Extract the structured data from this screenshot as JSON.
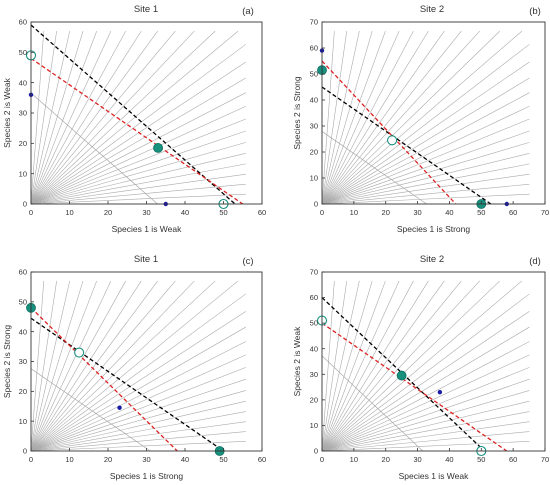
{
  "chart_data": [
    {
      "type": "line",
      "title": "Site 1",
      "panel_tag": "(a)",
      "xlabel": "Species 1 is Weak",
      "ylabel": "Species 2 is Weak",
      "xlim": [
        0,
        60
      ],
      "ylim": [
        0,
        60
      ],
      "xticks": [
        0,
        10,
        20,
        30,
        40,
        50,
        60
      ],
      "yticks": [
        0,
        10,
        20,
        30,
        40,
        50,
        60
      ],
      "colors": {
        "axes": "#333333",
        "trajectories": "#aaaaaa",
        "black_line": "#000000",
        "red_line": "#dd2222",
        "teal_point": "#17907e",
        "blue_point": "#1a1aa8"
      },
      "isoclines": [
        {
          "color": "black",
          "style": "dashed",
          "points": [
            [
              0,
              59
            ],
            [
              53,
              0
            ]
          ]
        },
        {
          "color": "red",
          "style": "dashed",
          "points": [
            [
              0,
              48
            ],
            [
              55,
              0
            ]
          ]
        }
      ],
      "equilibria": [
        {
          "x": 33,
          "y": 18.5,
          "kind": "filled-teal"
        },
        {
          "x": 0,
          "y": 49,
          "kind": "open-teal"
        },
        {
          "x": 50,
          "y": 0,
          "kind": "open-teal"
        },
        {
          "x": 0,
          "y": 36,
          "kind": "small-blue"
        },
        {
          "x": 35,
          "y": 0,
          "kind": "small-blue"
        }
      ]
    },
    {
      "type": "line",
      "title": "Site 2",
      "panel_tag": "(b)",
      "xlabel": "Species 1 is Strong",
      "ylabel": "Species 2 is Strong",
      "xlim": [
        0,
        70
      ],
      "ylim": [
        0,
        70
      ],
      "xticks": [
        0,
        10,
        20,
        30,
        40,
        50,
        60,
        70
      ],
      "yticks": [
        0,
        10,
        20,
        30,
        40,
        50,
        60,
        70
      ],
      "colors": {
        "axes": "#333333",
        "trajectories": "#aaaaaa",
        "black_line": "#000000",
        "red_line": "#dd2222",
        "teal_point": "#17907e",
        "blue_point": "#1a1aa8"
      },
      "isoclines": [
        {
          "color": "black",
          "style": "dashed",
          "points": [
            [
              0,
              45
            ],
            [
              53,
              0
            ]
          ]
        },
        {
          "color": "red",
          "style": "dashed",
          "points": [
            [
              0,
              55
            ],
            [
              42,
              0
            ]
          ]
        }
      ],
      "equilibria": [
        {
          "x": 0,
          "y": 51.5,
          "kind": "filled-teal"
        },
        {
          "x": 50,
          "y": 0,
          "kind": "filled-teal"
        },
        {
          "x": 22,
          "y": 24.5,
          "kind": "open-teal"
        },
        {
          "x": 0,
          "y": 59,
          "kind": "small-blue"
        },
        {
          "x": 58,
          "y": 0,
          "kind": "small-blue"
        }
      ]
    },
    {
      "type": "line",
      "title": "Site 1",
      "panel_tag": "(c)",
      "xlabel": "Species 1 is Strong",
      "ylabel": "Species 2 is Strong",
      "xlim": [
        0,
        60
      ],
      "ylim": [
        0,
        60
      ],
      "xticks": [
        0,
        10,
        20,
        30,
        40,
        50,
        60
      ],
      "yticks": [
        0,
        10,
        20,
        30,
        40,
        50,
        60
      ],
      "colors": {
        "axes": "#333333",
        "trajectories": "#aaaaaa",
        "black_line": "#000000",
        "red_line": "#dd2222",
        "teal_point": "#17907e",
        "blue_point": "#1a1aa8"
      },
      "isoclines": [
        {
          "color": "black",
          "style": "dashed",
          "points": [
            [
              0,
              44.5
            ],
            [
              50,
              0
            ]
          ]
        },
        {
          "color": "red",
          "style": "dashed",
          "points": [
            [
              0,
              48
            ],
            [
              38,
              0
            ]
          ]
        }
      ],
      "equilibria": [
        {
          "x": 0,
          "y": 48,
          "kind": "filled-teal"
        },
        {
          "x": 49,
          "y": 0,
          "kind": "filled-teal"
        },
        {
          "x": 12.5,
          "y": 33,
          "kind": "open-teal"
        },
        {
          "x": 23,
          "y": 14.5,
          "kind": "small-blue"
        }
      ]
    },
    {
      "type": "line",
      "title": "Site 2",
      "panel_tag": "(d)",
      "xlabel": "Species 1 is Weak",
      "ylabel": "Species 2 is Weak",
      "xlim": [
        0,
        70
      ],
      "ylim": [
        0,
        70
      ],
      "xticks": [
        0,
        10,
        20,
        30,
        40,
        50,
        60,
        70
      ],
      "yticks": [
        0,
        10,
        20,
        30,
        40,
        50,
        60,
        70
      ],
      "colors": {
        "axes": "#333333",
        "trajectories": "#aaaaaa",
        "black_line": "#000000",
        "red_line": "#dd2222",
        "teal_point": "#17907e",
        "blue_point": "#1a1aa8"
      },
      "isoclines": [
        {
          "color": "black",
          "style": "dashed",
          "points": [
            [
              0,
              60
            ],
            [
              51,
              0
            ]
          ]
        },
        {
          "color": "red",
          "style": "dashed",
          "points": [
            [
              0,
              50
            ],
            [
              58,
              0
            ]
          ]
        }
      ],
      "equilibria": [
        {
          "x": 25,
          "y": 29.5,
          "kind": "filled-teal"
        },
        {
          "x": 0,
          "y": 51,
          "kind": "open-teal"
        },
        {
          "x": 50,
          "y": 0,
          "kind": "open-teal"
        },
        {
          "x": 37,
          "y": 23,
          "kind": "small-blue"
        }
      ]
    }
  ]
}
